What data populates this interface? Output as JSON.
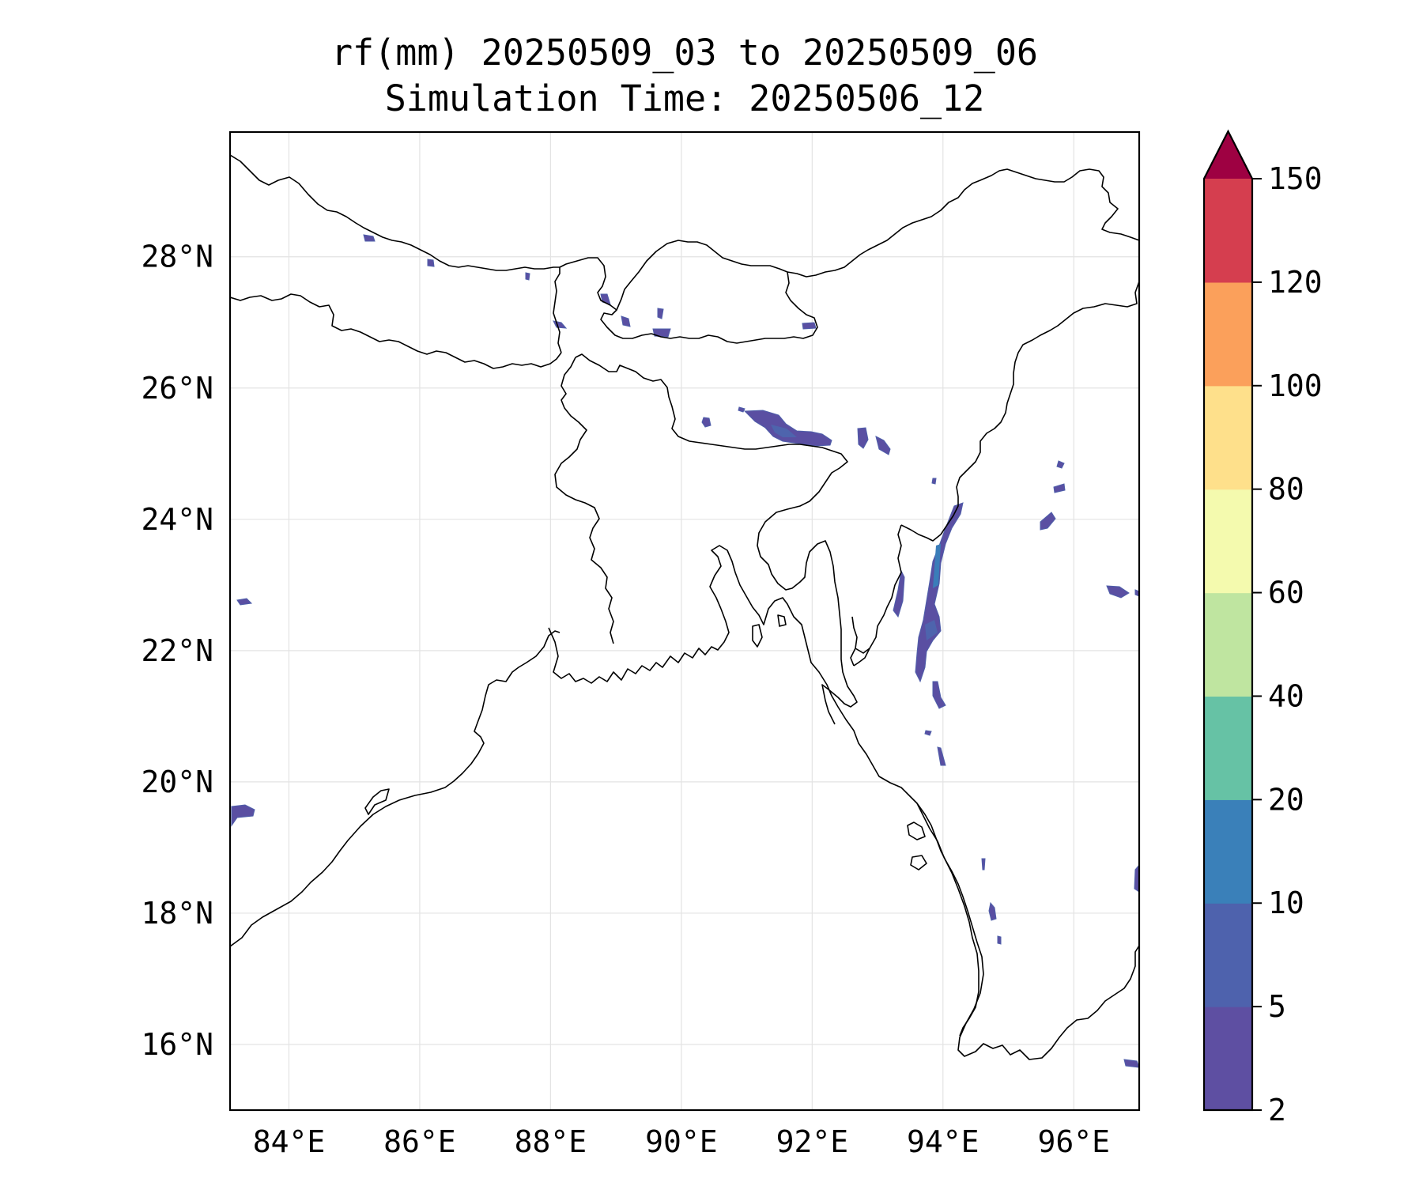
{
  "title": {
    "line1": "rf(mm) 20250509_03 to 20250509_06",
    "line2": "Simulation Time: 20250506_12"
  },
  "map": {
    "lon_range": [
      83.1,
      97.0
    ],
    "lat_range": [
      15.0,
      29.9
    ],
    "x_ticks": [
      {
        "value": 84,
        "label": "84°E"
      },
      {
        "value": 86,
        "label": "86°E"
      },
      {
        "value": 88,
        "label": "88°E"
      },
      {
        "value": 90,
        "label": "90°E"
      },
      {
        "value": 92,
        "label": "92°E"
      },
      {
        "value": 94,
        "label": "94°E"
      },
      {
        "value": 96,
        "label": "96°E"
      }
    ],
    "y_ticks": [
      {
        "value": 16,
        "label": "16°N"
      },
      {
        "value": 18,
        "label": "18°N"
      },
      {
        "value": 20,
        "label": "20°N"
      },
      {
        "value": 22,
        "label": "22°N"
      },
      {
        "value": 24,
        "label": "24°N"
      },
      {
        "value": 26,
        "label": "26°N"
      },
      {
        "value": 28,
        "label": "28°N"
      }
    ],
    "grid": true,
    "rain_color": "#5a4fa2"
  },
  "colorbar": {
    "extend": "max",
    "extend_color": "#9e0142",
    "bins": [
      {
        "from": 2,
        "to": 5,
        "color": "#5e4fa2"
      },
      {
        "from": 5,
        "to": 10,
        "color": "#4e62ad"
      },
      {
        "from": 10,
        "to": 20,
        "color": "#3a80b9"
      },
      {
        "from": 20,
        "to": 40,
        "color": "#66c2a5"
      },
      {
        "from": 40,
        "to": 60,
        "color": "#bfe5a0"
      },
      {
        "from": 60,
        "to": 80,
        "color": "#f4faae"
      },
      {
        "from": 80,
        "to": 100,
        "color": "#fee08b"
      },
      {
        "from": 100,
        "to": 120,
        "color": "#fba05b"
      },
      {
        "from": 120,
        "to": 150,
        "color": "#d53e4f"
      }
    ],
    "labels": [
      "2",
      "5",
      "10",
      "20",
      "40",
      "60",
      "80",
      "100",
      "120",
      "150"
    ]
  }
}
